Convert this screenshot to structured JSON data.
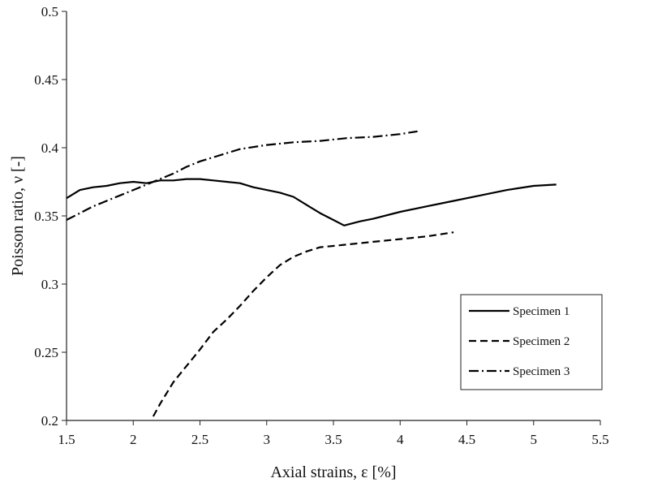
{
  "chart_data": {
    "type": "line",
    "xlabel": "Axial strains, ε [%]",
    "ylabel": "Poisson ratio, ν [-]",
    "xlim": [
      1.5,
      5.5
    ],
    "ylim": [
      0.2,
      0.5
    ],
    "xticks": [
      "1.5",
      "2",
      "2.5",
      "3",
      "3.5",
      "4",
      "4.5",
      "5",
      "5.5"
    ],
    "yticks": [
      "0.2",
      "0.25",
      "0.3",
      "0.35",
      "0.4",
      "0.45",
      "0.5"
    ],
    "grid": false,
    "legend": "right",
    "series": [
      {
        "name": "Specimen 1",
        "style": "solid",
        "x": [
          1.5,
          1.6,
          1.7,
          1.8,
          1.9,
          2.0,
          2.1,
          2.2,
          2.3,
          2.4,
          2.5,
          2.6,
          2.7,
          2.8,
          2.9,
          3.0,
          3.1,
          3.2,
          3.3,
          3.4,
          3.5,
          3.58,
          3.7,
          3.8,
          4.0,
          4.2,
          4.4,
          4.6,
          4.8,
          5.0,
          5.17
        ],
        "y": [
          0.363,
          0.369,
          0.371,
          0.372,
          0.374,
          0.375,
          0.374,
          0.376,
          0.376,
          0.377,
          0.377,
          0.376,
          0.375,
          0.374,
          0.371,
          0.369,
          0.367,
          0.364,
          0.358,
          0.352,
          0.347,
          0.343,
          0.346,
          0.348,
          0.353,
          0.357,
          0.361,
          0.365,
          0.369,
          0.372,
          0.373
        ]
      },
      {
        "name": "Specimen 2",
        "style": "dashed",
        "x": [
          2.15,
          2.2,
          2.3,
          2.4,
          2.5,
          2.6,
          2.7,
          2.8,
          2.9,
          3.0,
          3.1,
          3.2,
          3.3,
          3.4,
          3.5,
          3.6,
          3.7,
          3.8,
          4.0,
          4.2,
          4.4
        ],
        "y": [
          0.203,
          0.212,
          0.228,
          0.24,
          0.252,
          0.265,
          0.274,
          0.284,
          0.295,
          0.305,
          0.314,
          0.32,
          0.324,
          0.327,
          0.328,
          0.329,
          0.33,
          0.331,
          0.333,
          0.335,
          0.338
        ]
      },
      {
        "name": "Specimen 3",
        "style": "dash-dot",
        "x": [
          1.5,
          1.6,
          1.7,
          1.8,
          1.9,
          2.0,
          2.1,
          2.2,
          2.3,
          2.4,
          2.5,
          2.6,
          2.7,
          2.8,
          3.0,
          3.2,
          3.4,
          3.6,
          3.8,
          4.0,
          4.13
        ],
        "y": [
          0.347,
          0.352,
          0.357,
          0.361,
          0.365,
          0.369,
          0.373,
          0.377,
          0.381,
          0.386,
          0.39,
          0.393,
          0.396,
          0.399,
          0.402,
          0.404,
          0.405,
          0.407,
          0.408,
          0.41,
          0.412
        ]
      }
    ]
  }
}
